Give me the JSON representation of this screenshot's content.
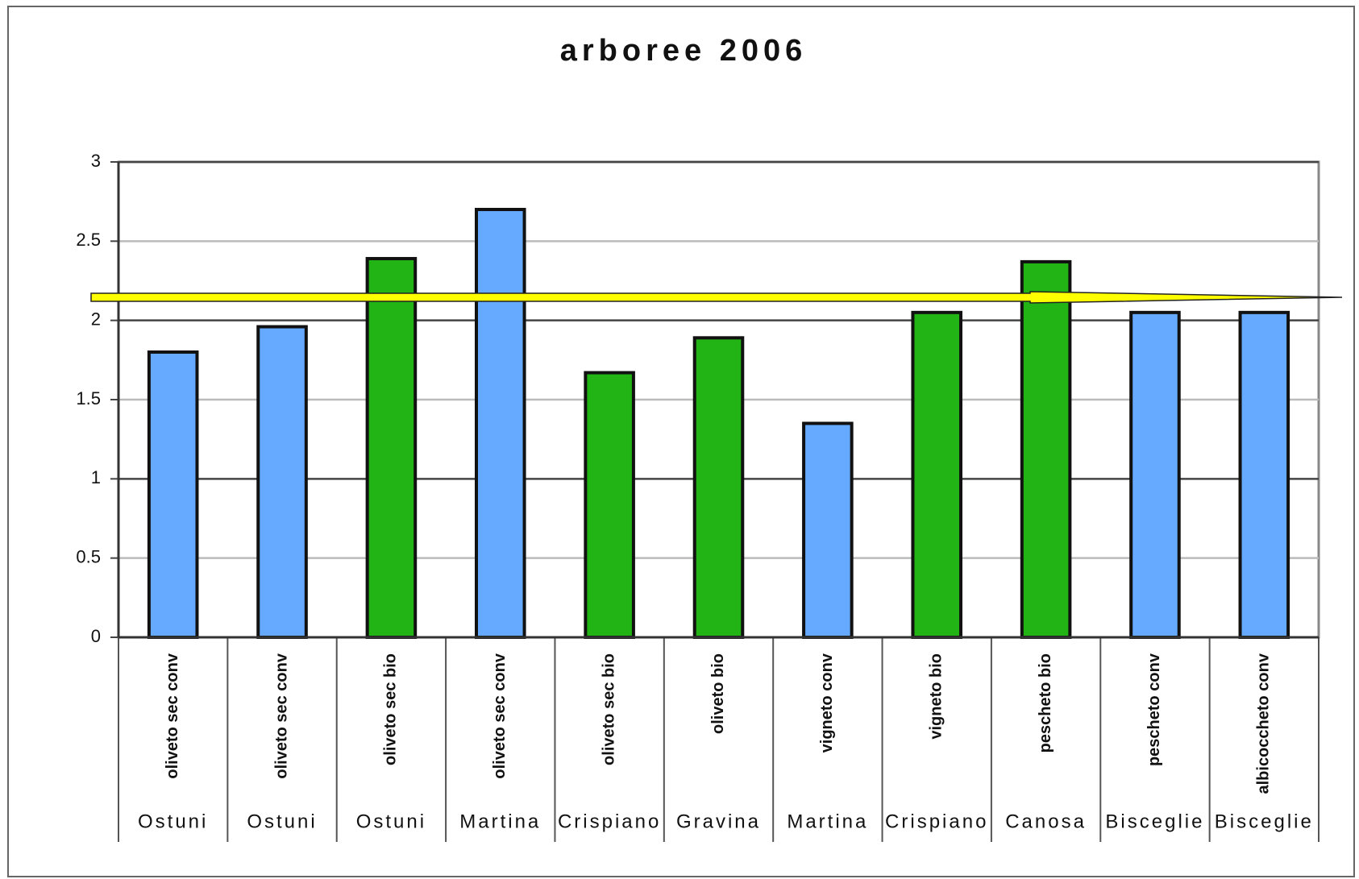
{
  "chart_data": {
    "type": "bar",
    "title": "arboree 2006",
    "categories": [
      "oliveto sec conv",
      "oliveto sec conv",
      "oliveto sec bio",
      "oliveto sec conv",
      "oliveto sec bio",
      "oliveto bio",
      "vigneto conv",
      "vigneto bio",
      "pescheto bio",
      "pescheto conv",
      "albicoccheto conv"
    ],
    "groups": [
      "Ostuni",
      "Ostuni",
      "Ostuni",
      "Martina",
      "Crispiano",
      "Gravina",
      "Martina",
      "Crispiano",
      "Canosa",
      "Bisceglie",
      "Bisceglie"
    ],
    "values": [
      1.8,
      1.96,
      2.39,
      2.7,
      1.67,
      1.89,
      1.35,
      2.05,
      2.37,
      2.05,
      2.05
    ],
    "colors": [
      "#66aaff",
      "#66aaff",
      "#22b414",
      "#66aaff",
      "#22b414",
      "#22b414",
      "#66aaff",
      "#22b414",
      "#22b414",
      "#66aaff",
      "#66aaff"
    ],
    "ylim": [
      0,
      3
    ],
    "yticks": [
      0,
      0.5,
      1,
      1.5,
      2,
      2.5,
      3
    ],
    "grid": true
  }
}
